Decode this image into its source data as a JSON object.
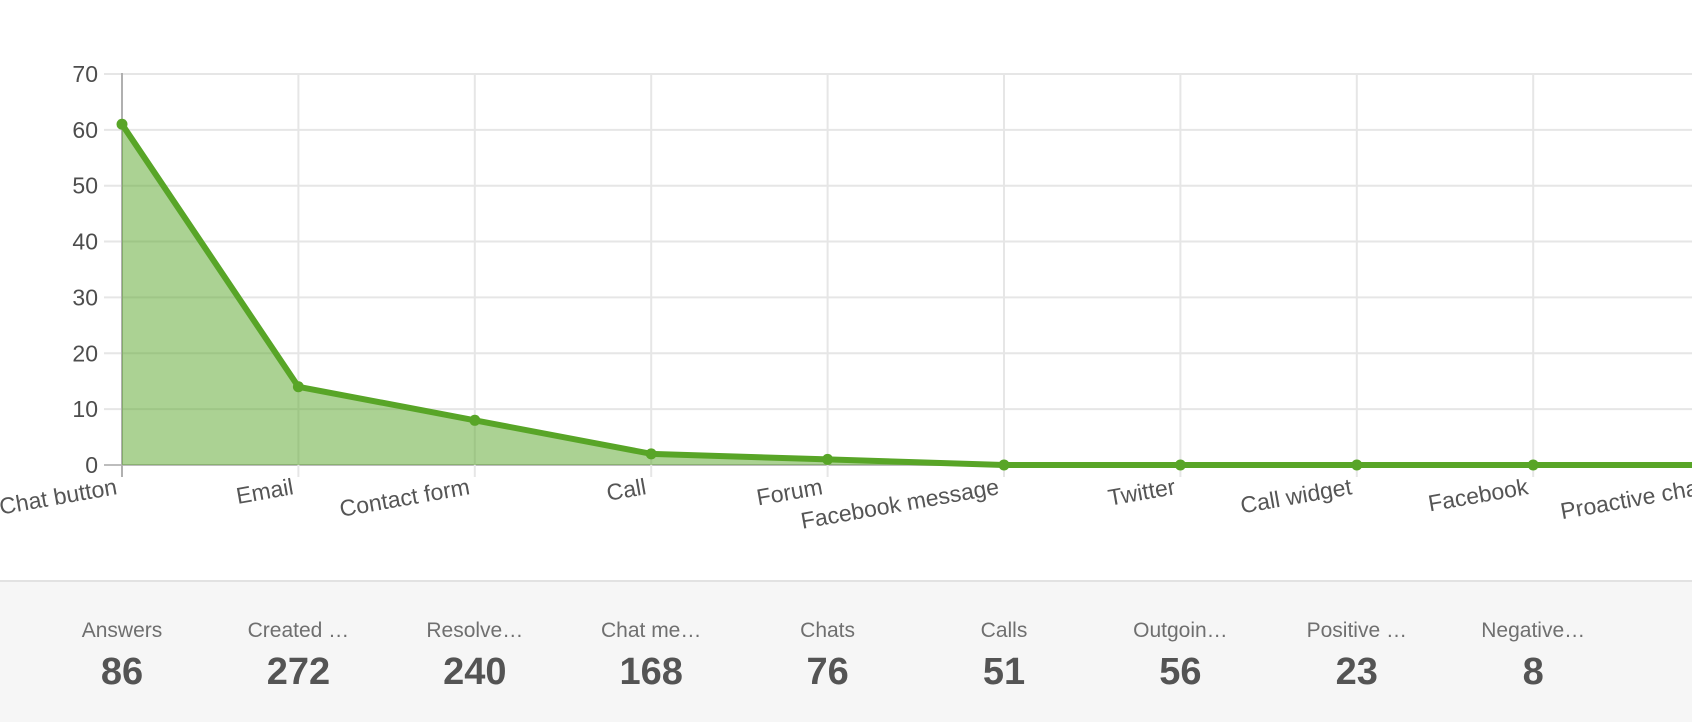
{
  "chart_data": {
    "type": "area",
    "title": "",
    "xlabel": "",
    "ylabel": "",
    "categories": [
      "Chat button",
      "Email",
      "Contact form",
      "Call",
      "Forum",
      "Facebook message",
      "Twitter",
      "Call widget",
      "Facebook",
      "Proactive chat"
    ],
    "values": [
      61,
      14,
      8,
      2,
      1,
      0,
      0,
      0,
      0,
      0
    ],
    "y_ticks": [
      0,
      10,
      20,
      30,
      40,
      50,
      60,
      70
    ],
    "ylim": [
      0,
      70
    ],
    "grid": true,
    "legend_position": "none",
    "line_color": "#58a527",
    "fill_color": "rgba(88,165,39,0.5)",
    "marker_color": "#58a527",
    "grid_color": "#e6e6e6",
    "axis_line_color": "#b0b0b0",
    "baseline_color": "#bdbdbd",
    "tick_label_color": "#4d4d4d",
    "category_label_color": "#555555"
  },
  "stats": {
    "items": [
      {
        "label": "Answers",
        "value": "86"
      },
      {
        "label": "Created …",
        "value": "272"
      },
      {
        "label": "Resolve…",
        "value": "240"
      },
      {
        "label": "Chat me…",
        "value": "168"
      },
      {
        "label": "Chats",
        "value": "76"
      },
      {
        "label": "Calls",
        "value": "51"
      },
      {
        "label": "Outgoin…",
        "value": "56"
      },
      {
        "label": "Positive …",
        "value": "23"
      },
      {
        "label": "Negative…",
        "value": "8"
      }
    ],
    "background": "#f6f6f6",
    "border_color": "#e2e2e2",
    "label_color": "#6f6f6f",
    "value_color": "#545454"
  }
}
